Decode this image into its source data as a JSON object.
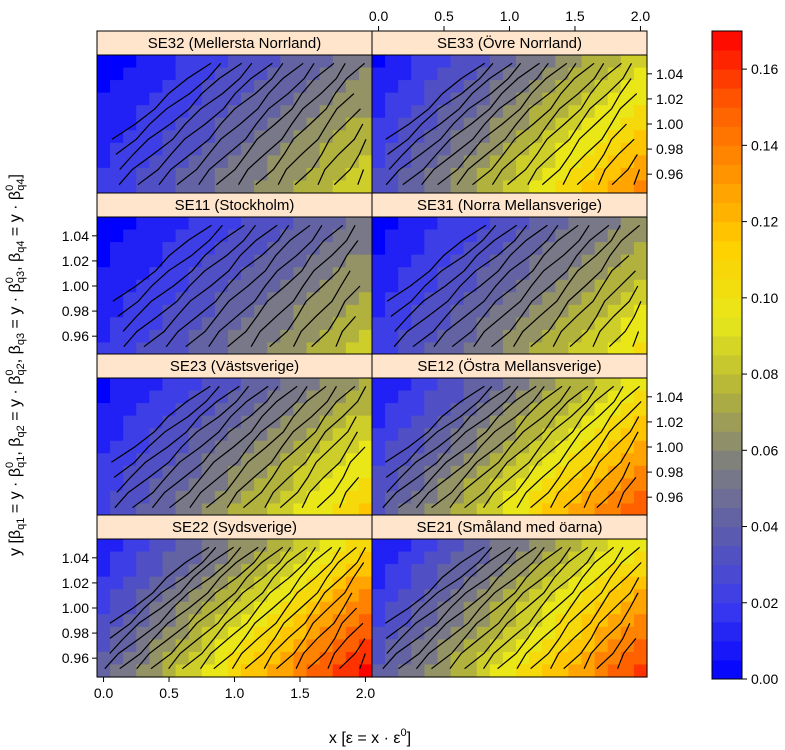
{
  "chart_data": {
    "type": "heatmap",
    "panel_layout": {
      "columns": 2,
      "rows": 4
    },
    "panels": [
      {
        "label": "SE32 (Mellersta Norrland)",
        "intensity": 0.55
      },
      {
        "label": "SE33 (Övre Norrland)",
        "intensity": 0.8
      },
      {
        "label": "SE11 (Stockholm)",
        "intensity": 0.52
      },
      {
        "label": "SE31 (Norra Mellansverige)",
        "intensity": 0.62
      },
      {
        "label": "SE23 (Västsverige)",
        "intensity": 0.68
      },
      {
        "label": "SE12 (Östra Mellansverige)",
        "intensity": 0.9
      },
      {
        "label": "SE22 (Sydsverige)",
        "intensity": 1.0
      },
      {
        "label": "SE21 (Småland med öarna)",
        "intensity": 0.92
      }
    ],
    "x": {
      "min": -0.05,
      "max": 2.05,
      "ticks": [
        0.0,
        0.5,
        1.0,
        1.5,
        2.0
      ],
      "tick_labels": [
        "0.0",
        "0.5",
        "1.0",
        "1.5",
        "2.0"
      ]
    },
    "y": {
      "min": 0.945,
      "max": 1.055,
      "ticks": [
        0.96,
        0.98,
        1.0,
        1.02,
        1.04
      ],
      "tick_labels": [
        "0.96",
        "0.98",
        "1.00",
        "1.02",
        "1.04"
      ]
    },
    "xlabel": {
      "main": "x  [ε = x · ε",
      "sup": "0",
      "close": "]"
    },
    "ylabel": {
      "prefix": "y  [",
      "parts": [
        {
          "beta": "β",
          "sub": "q1",
          "mid": " = y · β",
          "sup": "0",
          "sub2": "q1",
          "sep": ",  "
        },
        {
          "beta": "β",
          "sub": "q2",
          "mid": " = y · β",
          "sup": "0",
          "sub2": "q2",
          "sep": ",  "
        },
        {
          "beta": "β",
          "sub": "q3",
          "mid": " = y · β",
          "sup": "0",
          "sub2": "q3",
          "sep": ",  "
        },
        {
          "beta": "β",
          "sub": "q4",
          "mid": " = y · β",
          "sup": "0",
          "sub2": "q4",
          "sep": "]"
        }
      ]
    },
    "colorbar": {
      "min": 0.0,
      "max": 0.17,
      "ticks": [
        0.0,
        0.02,
        0.04,
        0.06,
        0.08,
        0.1,
        0.12,
        0.14,
        0.16
      ],
      "tick_labels": [
        "0.00",
        "0.02",
        "0.04",
        "0.06",
        "0.08",
        "0.10",
        "0.12",
        "0.14",
        "0.16"
      ],
      "colors": [
        "#0000ff",
        "#3a3aef",
        "#5a5ab0",
        "#7f7f7f",
        "#b4b43a",
        "#e8e81a",
        "#ffd000",
        "#ff9500",
        "#ff5a00",
        "#ff0000"
      ]
    },
    "grid_cells": {
      "nx": 21,
      "ny": 11
    },
    "strip_color": "#ffe5cc",
    "contour_color": "#000000"
  }
}
